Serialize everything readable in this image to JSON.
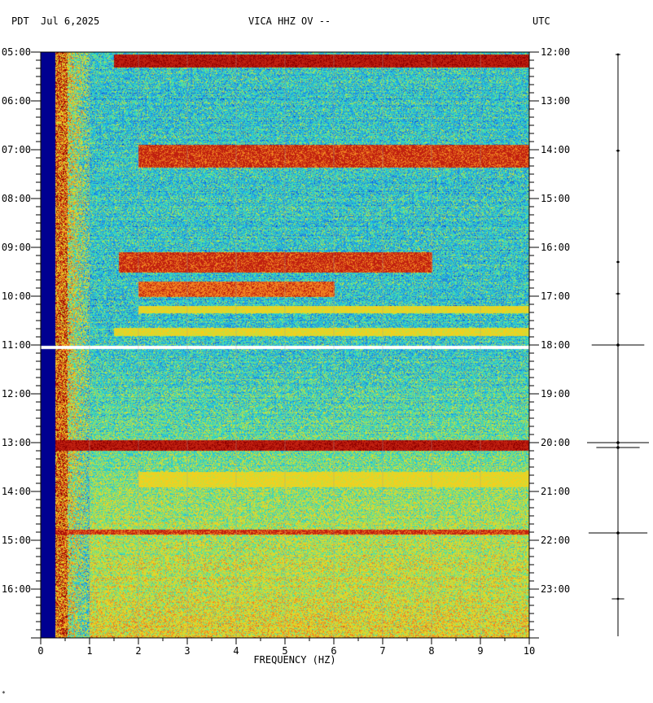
{
  "header": {
    "tz_left": "PDT",
    "date": "Jul 6,2025",
    "station": "VICA HHZ OV --",
    "tz_right": "UTC"
  },
  "footer_mark": "*",
  "chart_data": {
    "type": "heatmap",
    "title": "VICA HHZ OV --",
    "xlabel": "FREQUENCY (HZ)",
    "xlim": [
      0,
      10
    ],
    "x_ticks": [
      "0",
      "1",
      "2",
      "3",
      "4",
      "5",
      "6",
      "7",
      "8",
      "9",
      "10"
    ],
    "left_time_labels": [
      "05:00",
      "06:00",
      "07:00",
      "08:00",
      "09:00",
      "10:00",
      "11:00",
      "12:00",
      "13:00",
      "14:00",
      "15:00",
      "16:00"
    ],
    "right_time_labels": [
      "12:00",
      "13:00",
      "14:00",
      "15:00",
      "16:00",
      "17:00",
      "18:00",
      "19:00",
      "20:00",
      "21:00",
      "22:00",
      "23:00"
    ],
    "time_range_hours": [
      5,
      17
    ],
    "colormap": [
      "#000090",
      "#0030d0",
      "#2080e0",
      "#20c0e0",
      "#50e0a0",
      "#c0e040",
      "#f0d020",
      "#f08020",
      "#c02010",
      "#900000"
    ],
    "strong_bands": [
      {
        "start_h": 5.05,
        "end_h": 5.3,
        "f_min": 1.5,
        "f_max": 10.0,
        "intensity": 0.95
      },
      {
        "start_h": 6.9,
        "end_h": 7.35,
        "f_min": 2.0,
        "f_max": 10.0,
        "intensity": 0.9
      },
      {
        "start_h": 9.1,
        "end_h": 9.5,
        "f_min": 1.6,
        "f_max": 8.0,
        "intensity": 0.9
      },
      {
        "start_h": 9.7,
        "end_h": 10.0,
        "f_min": 2.0,
        "f_max": 6.0,
        "intensity": 0.85
      },
      {
        "start_h": 10.2,
        "end_h": 10.35,
        "f_min": 2.0,
        "f_max": 10.0,
        "intensity": 0.7
      },
      {
        "start_h": 10.65,
        "end_h": 10.8,
        "f_min": 1.5,
        "f_max": 10.0,
        "intensity": 0.7
      },
      {
        "start_h": 12.95,
        "end_h": 13.15,
        "f_min": 0.3,
        "f_max": 10.0,
        "intensity": 0.95
      },
      {
        "start_h": 13.6,
        "end_h": 13.9,
        "f_min": 2.0,
        "f_max": 10.0,
        "intensity": 0.7
      },
      {
        "start_h": 14.78,
        "end_h": 14.88,
        "f_min": 0.3,
        "f_max": 10.0,
        "intensity": 0.9
      }
    ],
    "gap_hour": 11.05,
    "trace_events": [
      {
        "hour": 5.05,
        "amp": 0.08
      },
      {
        "hour": 7.02,
        "amp": 0.06
      },
      {
        "hour": 9.3,
        "amp": 0.05
      },
      {
        "hour": 9.95,
        "amp": 0.07
      },
      {
        "hour": 11.0,
        "amp": 0.85
      },
      {
        "hour": 13.0,
        "amp": 1.0
      },
      {
        "hour": 13.1,
        "amp": 0.7
      },
      {
        "hour": 14.85,
        "amp": 0.95
      },
      {
        "hour": 16.2,
        "amp": 0.2
      }
    ]
  }
}
